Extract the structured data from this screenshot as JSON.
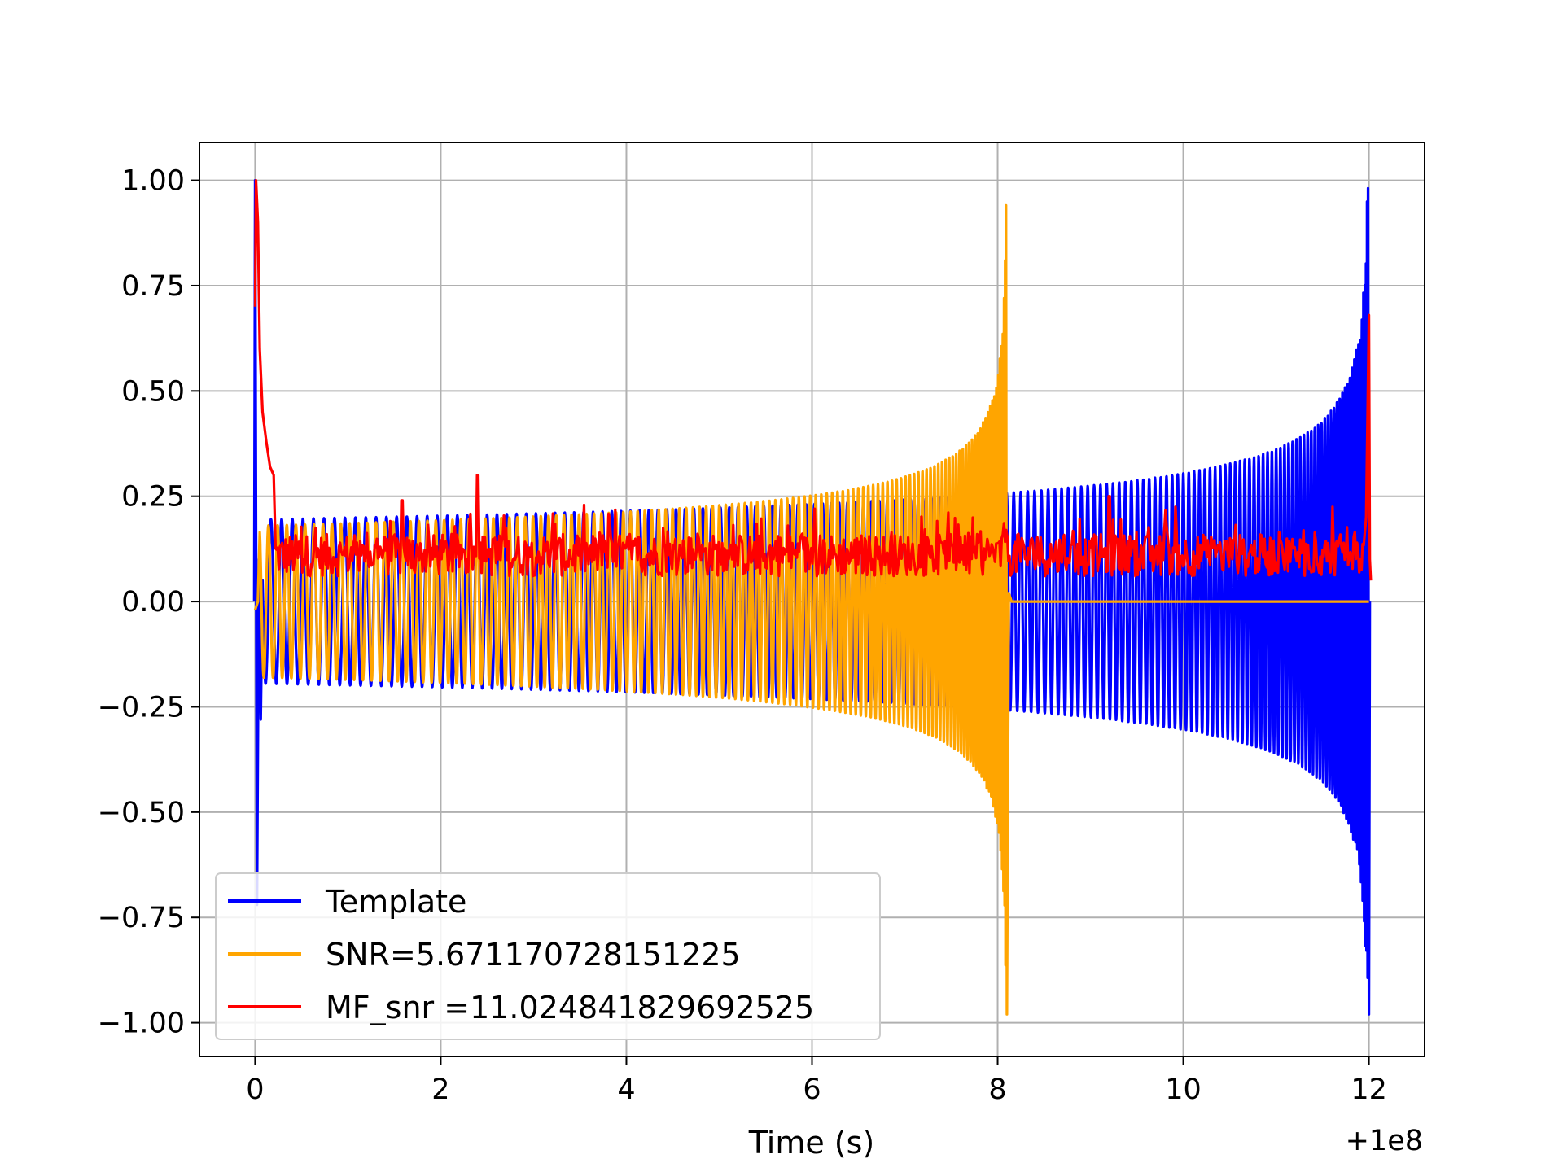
{
  "chart_data": {
    "type": "line",
    "title": "",
    "xlabel": "Time (s)",
    "ylabel": "",
    "x_offset_label": "+1e8",
    "xlim": [
      -0.6,
      12.6
    ],
    "ylim": [
      -1.08,
      1.09
    ],
    "xticks": [
      0,
      2,
      4,
      6,
      8,
      10,
      12
    ],
    "xtick_labels": [
      "0",
      "2",
      "4",
      "6",
      "8",
      "10",
      "12"
    ],
    "yticks": [
      1.0,
      0.75,
      0.5,
      0.25,
      0.0,
      -0.25,
      -0.5,
      -0.75,
      -1.0
    ],
    "ytick_labels": [
      "1.00",
      "0.75",
      "0.50",
      "0.25",
      "0.00",
      "−0.25",
      "−0.50",
      "−0.75",
      "−1.00"
    ],
    "grid": true,
    "legend_position": "lower-left",
    "series": [
      {
        "name": "Template",
        "color": "#0000ff",
        "description_points": [
          [
            0.0,
            1.0
          ],
          [
            0.02,
            -0.72
          ],
          [
            0.1,
            0.2
          ],
          [
            4.0,
            0.2
          ],
          [
            8.0,
            0.22
          ],
          [
            11.0,
            0.28
          ],
          [
            11.8,
            0.5
          ],
          [
            11.95,
            0.9
          ],
          [
            12.0,
            -0.98
          ]
        ]
      },
      {
        "name": "SNR=5.671170728151225",
        "color": "#ffa500",
        "description_points": [
          [
            0.0,
            0.0
          ],
          [
            0.1,
            0.18
          ],
          [
            4.0,
            0.2
          ],
          [
            6.0,
            0.25
          ],
          [
            7.5,
            0.35
          ],
          [
            7.9,
            0.5
          ],
          [
            8.05,
            1.0
          ],
          [
            8.1,
            -0.98
          ],
          [
            8.15,
            0.0
          ],
          [
            12.0,
            0.0
          ]
        ]
      },
      {
        "name": "MF_snr =11.024841829692525",
        "color": "#ff0000",
        "description_points": [
          [
            0.0,
            0.7
          ],
          [
            0.02,
            1.0
          ],
          [
            0.1,
            0.45
          ],
          [
            0.2,
            0.3
          ],
          [
            1.58,
            0.24
          ],
          [
            2.4,
            0.3
          ],
          [
            6.0,
            0.2
          ],
          [
            9.2,
            0.25
          ],
          [
            11.9,
            0.18
          ],
          [
            12.0,
            0.68
          ],
          [
            12.02,
            0.05
          ]
        ]
      }
    ]
  }
}
